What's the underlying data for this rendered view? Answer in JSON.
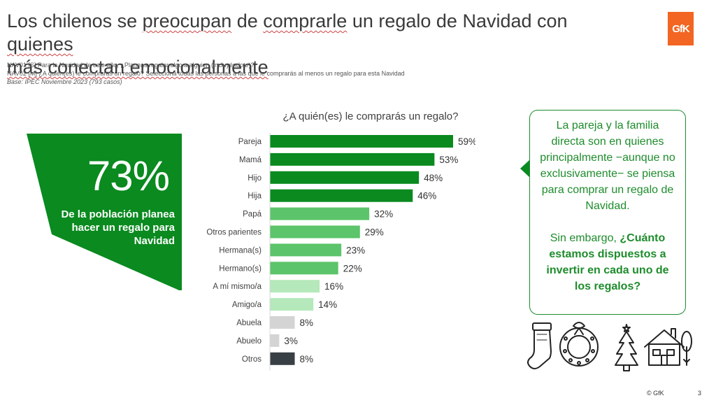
{
  "title": {
    "part1": "Los chilenos se ",
    "u1": "preocupan",
    "part2": " de ",
    "u2": "comprarle",
    "part3": " un regalo de Navidad con ",
    "u3": "quienes",
    "u4": "más conectan emocionalmente"
  },
  "notes": {
    "q1": "NAV01 [S] Para la Navidad de este año, ¿Planeas regalar algo a alguien (incluyéndote)?",
    "q2": "NAV02 [M] ¿A quién(es) le comprarás un regalo? Selecciona todas las personas a las que le comprarás al menos un regalo para esta Navidad",
    "base": "Base: IPEC Noviembre 2023 (793 casos)"
  },
  "logo": "GfK",
  "highlight": {
    "value": "73%",
    "description": "De la población planea hacer un regalo para Navidad"
  },
  "chart_data": {
    "type": "bar",
    "orientation": "horizontal",
    "title": "¿A quién(es) le comprarás un regalo?",
    "categories": [
      "Pareja",
      "Mamá",
      "Hijo",
      "Hija",
      "Papá",
      "Otros parientes",
      "Hermana(s)",
      "Hermano(s)",
      "A mí mismo/a",
      "Amigo/a",
      "Abuela",
      "Abuelo",
      "Otros"
    ],
    "values": [
      59,
      53,
      48,
      46,
      32,
      29,
      23,
      22,
      16,
      14,
      8,
      3,
      8
    ],
    "labels": [
      "59%",
      "53%",
      "48%",
      "46%",
      "32%",
      "29%",
      "23%",
      "22%",
      "16%",
      "14%",
      "8%",
      "3%",
      "8%"
    ],
    "colors": [
      "#0a8a1f",
      "#0a8a1f",
      "#0a8a1f",
      "#0a8a1f",
      "#5cc46a",
      "#5cc46a",
      "#5cc46a",
      "#5cc46a",
      "#b5e8bb",
      "#b5e8bb",
      "#d4d4d4",
      "#d4d4d4",
      "#383f45"
    ],
    "xlim": [
      0,
      59
    ],
    "grid": false
  },
  "callout": {
    "text1": "La pareja y la familia directa son en quienes principalmente −aunque no exclusivamente− se piensa para comprar un regalo de Navidad.",
    "text2_plain": "Sin embargo, ",
    "text2_bold": "¿Cuánto estamos dispuestos a invertir en cada uno de los regalos?"
  },
  "icons": [
    "stocking-icon",
    "wreath-icon",
    "christmas-tree-icon",
    "house-icon"
  ],
  "footer": {
    "copyright": "© GfK",
    "page": "3"
  }
}
